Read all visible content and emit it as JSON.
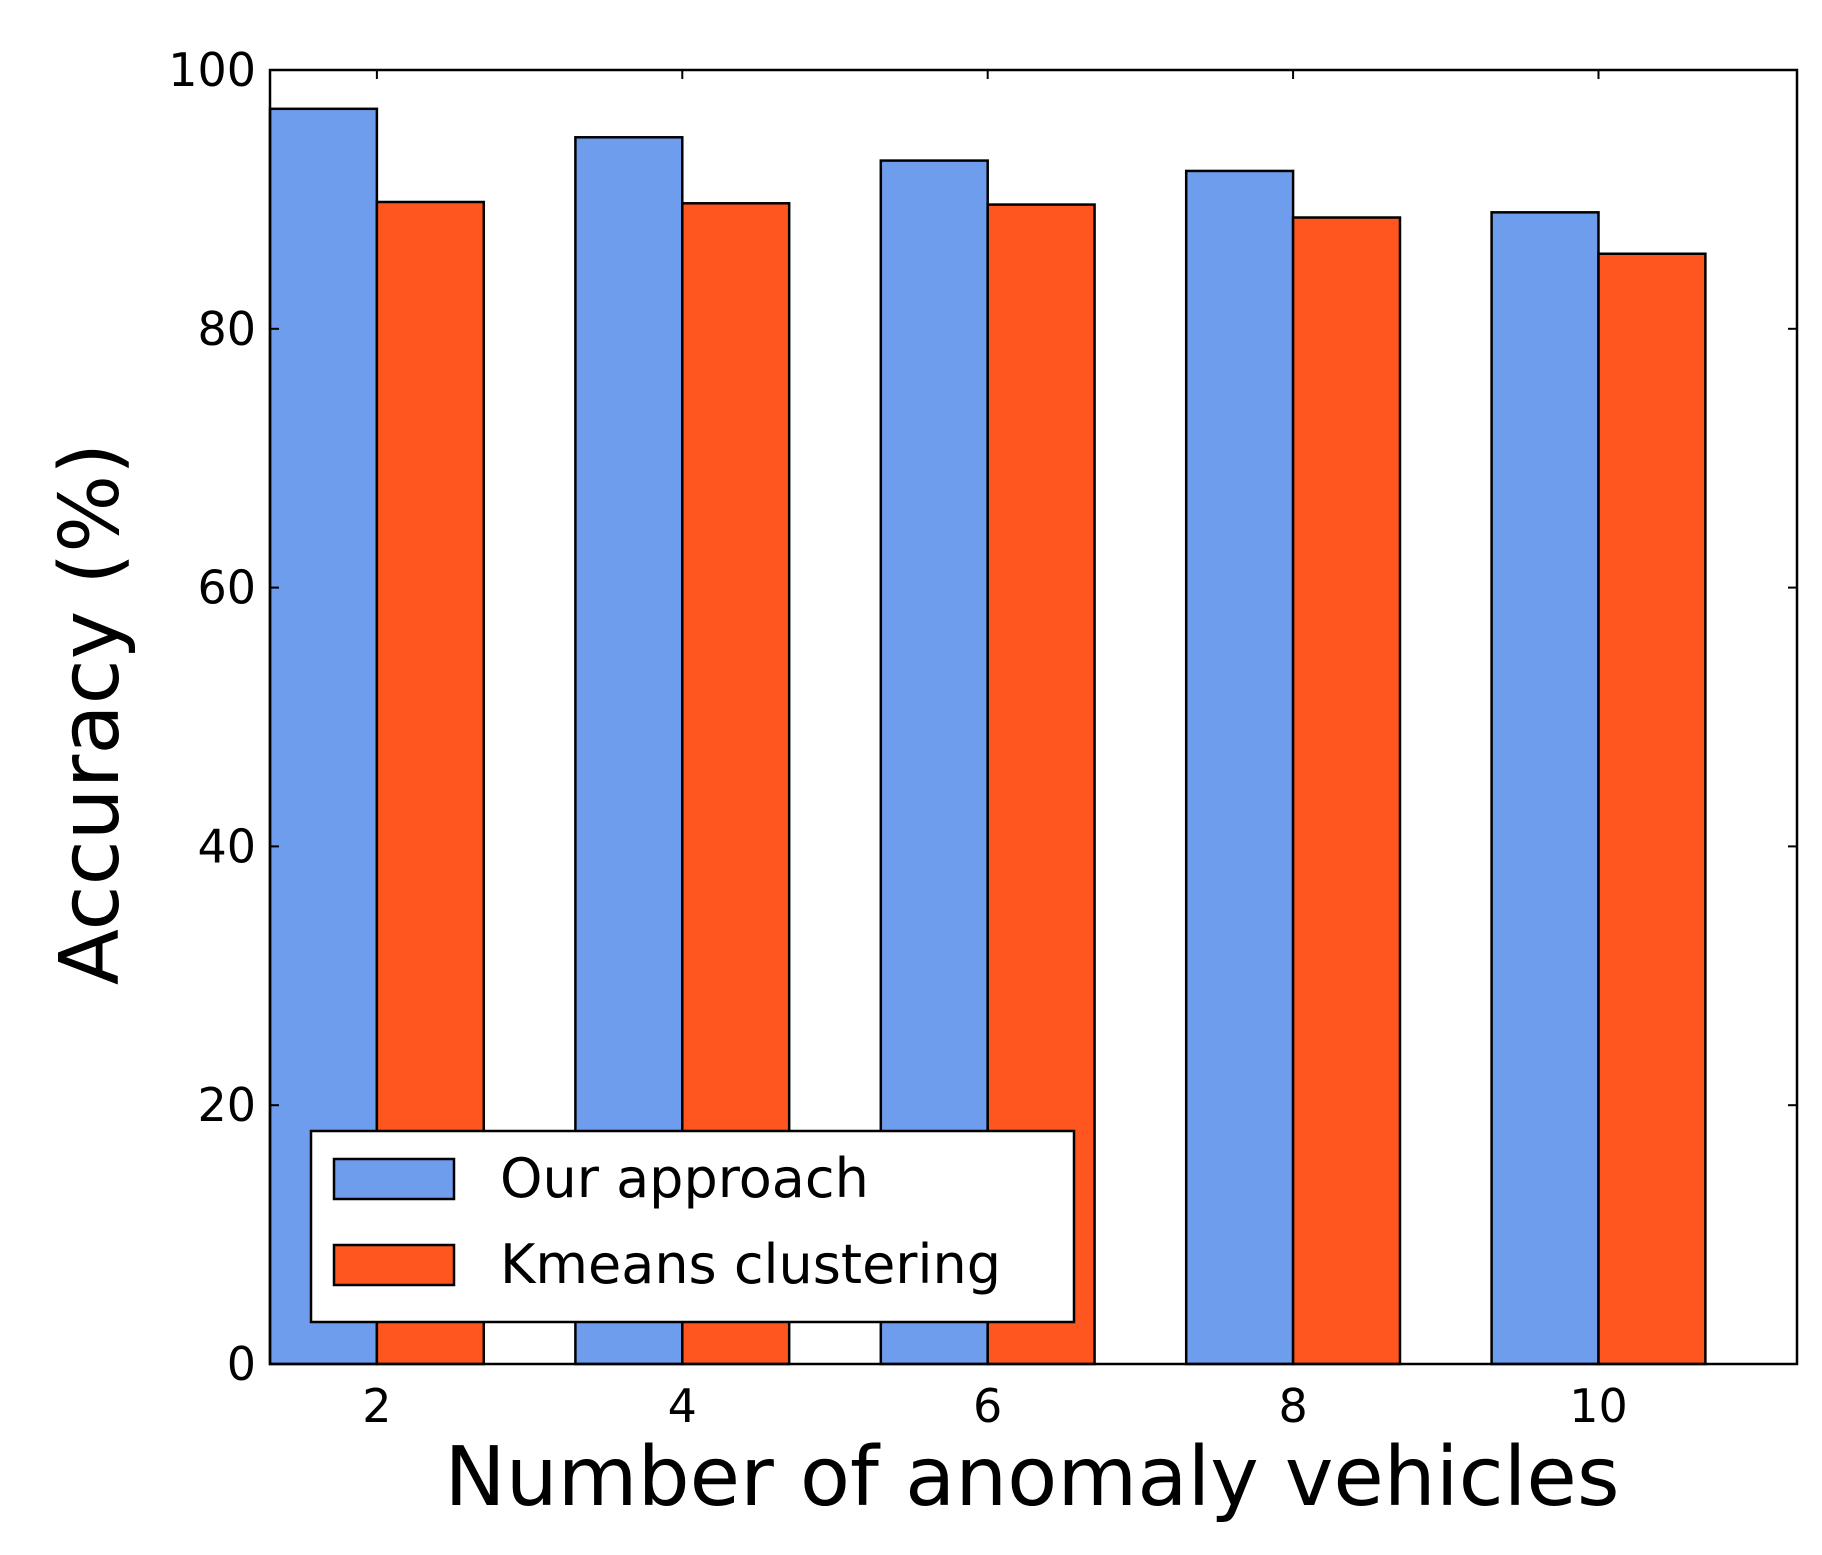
{
  "chart_data": {
    "type": "bar",
    "title": "",
    "xlabel": "Number of anomaly vehicles",
    "ylabel": "Accuracy (%)",
    "categories": [
      "2",
      "4",
      "6",
      "8",
      "10"
    ],
    "x": [
      2,
      4,
      6,
      8,
      10
    ],
    "xlim": [
      1.3,
      11.3
    ],
    "ylim": [
      0,
      100
    ],
    "yticks": [
      0,
      20,
      40,
      60,
      80,
      100
    ],
    "yticklabels": [
      "0",
      "20",
      "40",
      "60",
      "80",
      "100"
    ],
    "grid": false,
    "legend_position": "lower-left",
    "series": [
      {
        "name": "Our approach",
        "values": [
          97,
          94.8,
          93,
          92.2,
          89
        ],
        "color": "#6f9ded"
      },
      {
        "name": "Kmeans clustering",
        "values": [
          89.8,
          89.7,
          89.6,
          88.6,
          85.8
        ],
        "color": "#ff561f"
      }
    ]
  }
}
